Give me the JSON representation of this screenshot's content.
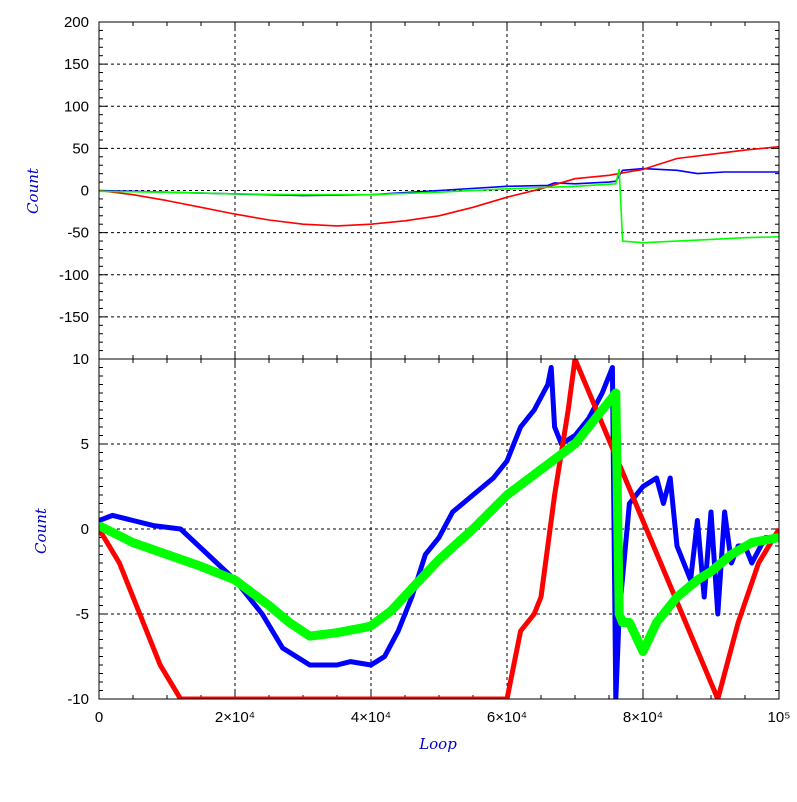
{
  "colors": {
    "blue": "#0000ff",
    "red": "#ff0000",
    "green": "#00ff00",
    "grid": "#000000",
    "label": "#0000cc"
  },
  "chart_data": [
    {
      "type": "line",
      "panel": "top",
      "xlabel": "",
      "ylabel": "Count",
      "xlim": [
        0,
        100000
      ],
      "ylim": [
        -200,
        200
      ],
      "yticks": [
        200,
        150,
        100,
        50,
        0,
        -50,
        -100,
        -150
      ],
      "grid": true,
      "series": [
        {
          "color": "blue",
          "x": [
            0,
            10000,
            20000,
            30000,
            40000,
            50000,
            60000,
            66000,
            67000,
            70000,
            75000,
            76000,
            77000,
            80000,
            85000,
            88000,
            92000,
            100000
          ],
          "y": [
            0,
            -2,
            -4,
            -6,
            -5,
            0,
            5,
            6,
            9,
            8,
            10,
            11,
            24,
            26,
            24,
            20,
            22,
            22
          ]
        },
        {
          "color": "red",
          "x": [
            0,
            5000,
            10000,
            15000,
            20000,
            25000,
            30000,
            35000,
            40000,
            45000,
            50000,
            55000,
            60000,
            65000,
            70000,
            75000,
            80000,
            85000,
            90000,
            95000,
            100000
          ],
          "y": [
            0,
            -5,
            -12,
            -20,
            -28,
            -35,
            -40,
            -42,
            -40,
            -36,
            -30,
            -20,
            -8,
            2,
            14,
            18,
            25,
            38,
            43,
            48,
            52
          ]
        },
        {
          "color": "green",
          "x": [
            0,
            10000,
            20000,
            30000,
            40000,
            50000,
            60000,
            70000,
            76000,
            76500,
            77000,
            80000,
            85000,
            90000,
            95000,
            100000
          ],
          "y": [
            -1,
            -2,
            -4,
            -5,
            -5,
            -2,
            2,
            5,
            8,
            25,
            -60,
            -62,
            -60,
            -58,
            -56,
            -55
          ]
        }
      ]
    },
    {
      "type": "line",
      "panel": "bottom",
      "xlabel": "Loop",
      "ylabel": "Count",
      "xlim": [
        0,
        100000
      ],
      "ylim": [
        -10,
        10
      ],
      "yticks": [
        10,
        5,
        0,
        -5,
        -10
      ],
      "xticks": [
        {
          "value": 0,
          "label": "0"
        },
        {
          "value": 20000,
          "label": "2×10⁴"
        },
        {
          "value": 40000,
          "label": "4×10⁴"
        },
        {
          "value": 60000,
          "label": "6×10⁴"
        },
        {
          "value": 80000,
          "label": "8×10⁴"
        },
        {
          "value": 100000,
          "label": "10⁵"
        }
      ],
      "grid": true,
      "series": [
        {
          "color": "blue",
          "x": [
            0,
            2000,
            5000,
            8000,
            12000,
            16000,
            20000,
            24000,
            27000,
            29000,
            31000,
            33000,
            35000,
            37000,
            40000,
            42000,
            44000,
            46000,
            48000,
            50000,
            52000,
            55000,
            58000,
            60000,
            62000,
            64000,
            66000,
            66500,
            67000,
            68000,
            70000,
            72000,
            74000,
            75500,
            76000,
            76500,
            78000,
            80000,
            82000,
            83000,
            84000,
            85000,
            86000,
            87000,
            88000,
            89000,
            90000,
            91000,
            92000,
            93000,
            94000,
            95000,
            96000,
            98000,
            100000
          ],
          "y": [
            0.5,
            0.8,
            0.5,
            0.2,
            0,
            -1.5,
            -3,
            -5,
            -7,
            -7.5,
            -8,
            -8,
            -8,
            -7.8,
            -8,
            -7.5,
            -6,
            -4,
            -1.5,
            -0.5,
            1,
            2,
            3,
            4,
            6,
            7,
            8.5,
            9.5,
            6,
            5,
            5.5,
            6.5,
            8,
            9.5,
            -10,
            -5,
            1.5,
            2.5,
            3,
            1.5,
            3,
            -1,
            -2,
            -3,
            0.5,
            -4,
            1,
            -5,
            1,
            -2,
            -1,
            -1,
            -2,
            -0.5,
            -0.5
          ]
        },
        {
          "color": "red",
          "x": [
            0,
            3000,
            6000,
            9000,
            12000,
            60000,
            62000,
            63000,
            64000,
            65000,
            67000,
            69000,
            70000,
            91000,
            94000,
            97000,
            100000
          ],
          "y": [
            0,
            -2,
            -5,
            -8,
            -10,
            -10,
            -6,
            -5.5,
            -5,
            -4,
            2,
            7,
            10,
            -10,
            -5.5,
            -2,
            0
          ]
        },
        {
          "color": "green",
          "x": [
            0,
            5000,
            10000,
            15000,
            20000,
            25000,
            28000,
            31000,
            35000,
            39000,
            40000,
            43000,
            46000,
            50000,
            55000,
            60000,
            65000,
            70000,
            73000,
            76000,
            76500,
            77000,
            78000,
            80000,
            82000,
            85000,
            88000,
            90000,
            93000,
            96000,
            100000
          ],
          "y": [
            0.2,
            -0.8,
            -1.5,
            -2.2,
            -3,
            -4.5,
            -5.5,
            -6.3,
            -6.1,
            -5.8,
            -5.7,
            -4.8,
            -3.5,
            -1.8,
            0,
            2,
            3.5,
            5,
            6.5,
            8,
            -5,
            -5.5,
            -5.5,
            -7.2,
            -5.5,
            -4,
            -3,
            -2.5,
            -1.5,
            -0.8,
            -0.5
          ]
        }
      ]
    }
  ]
}
